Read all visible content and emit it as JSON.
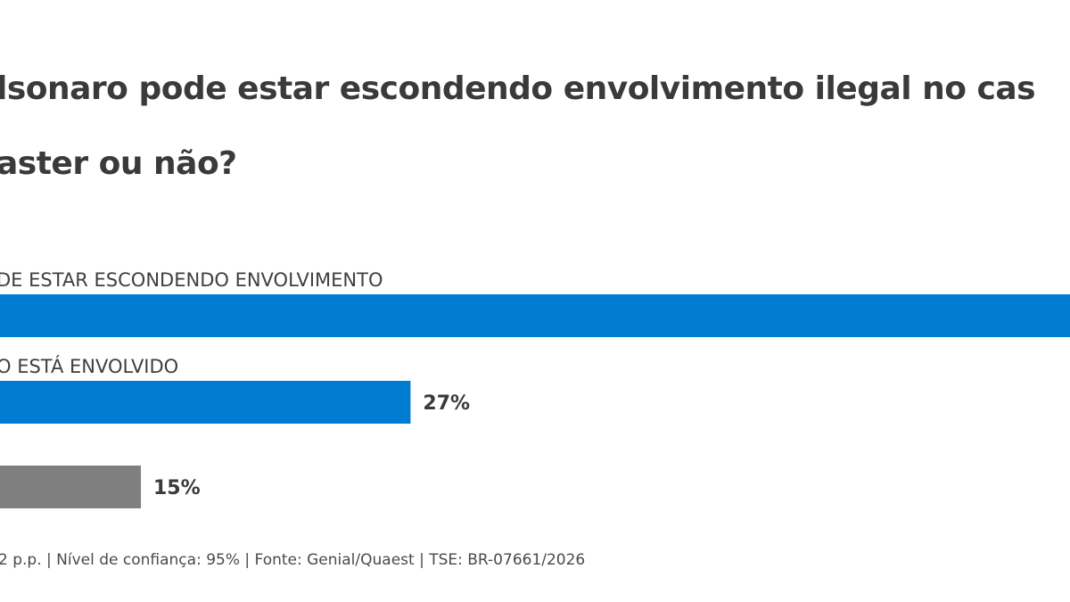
{
  "title_lines": [
    "lsonaro pode estar escondendo envolvimento ilegal no cas",
    "aster ou não?"
  ],
  "chart_data": {
    "type": "bar",
    "orientation": "horizontal",
    "categories": [
      "DE ESTAR ESCONDENDO ENVOLVIMENTO",
      "O ESTÁ ENVOLVIDO",
      ""
    ],
    "values": [
      58,
      27,
      15
    ],
    "value_labels": [
      "",
      "27%",
      "15%"
    ],
    "colors": [
      "#007bd2",
      "#007bd2",
      "#7f7f7f"
    ],
    "xlim": [
      0,
      100
    ]
  },
  "footnote": "2 p.p. | Nível de confiança: 95% | Fonte: Genial/Quaest | TSE: BR-07661/2026"
}
